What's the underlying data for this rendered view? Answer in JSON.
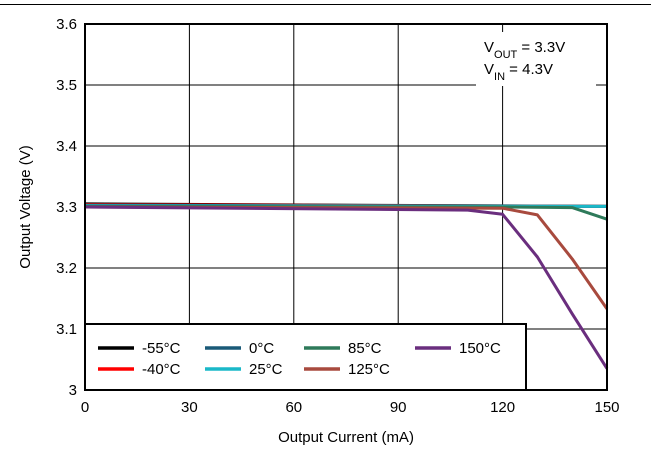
{
  "chart_data": {
    "type": "line",
    "xlabel": "Output Current (mA)",
    "ylabel": "Output Voltage (V)",
    "xlim": [
      0,
      150
    ],
    "ylim": [
      3,
      3.6
    ],
    "x_ticks": [
      "0",
      "30",
      "60",
      "90",
      "120",
      "150"
    ],
    "y_ticks": [
      "3",
      "3.1",
      "3.2",
      "3.3",
      "3.4",
      "3.5",
      "3.6"
    ],
    "grid": true,
    "legend_position": "bottom-left",
    "annotations": [
      {
        "main": "V",
        "sub": "OUT",
        "rest": " = 3.3V"
      },
      {
        "main": "V",
        "sub": "IN",
        "rest": " = 4.3V"
      }
    ],
    "series": [
      {
        "name": "-55°C",
        "color": "#000000",
        "x": [
          0,
          150
        ],
        "y": [
          3.305,
          3.301
        ]
      },
      {
        "name": "-40°C",
        "color": "#ff0000",
        "x": [
          0,
          150
        ],
        "y": [
          3.304,
          3.301
        ]
      },
      {
        "name": "0°C",
        "color": "#1a5a78",
        "x": [
          0,
          150
        ],
        "y": [
          3.303,
          3.301
        ]
      },
      {
        "name": "25°C",
        "color": "#1ab8c8",
        "x": [
          0,
          150
        ],
        "y": [
          3.302,
          3.301
        ]
      },
      {
        "name": "85°C",
        "color": "#2e7a5a",
        "x": [
          0,
          120,
          140,
          150
        ],
        "y": [
          3.301,
          3.3,
          3.299,
          3.28
        ]
      },
      {
        "name": "125°C",
        "color": "#a84a3e",
        "x": [
          0,
          120,
          130,
          140,
          150
        ],
        "y": [
          3.3,
          3.298,
          3.287,
          3.215,
          3.133
        ]
      },
      {
        "name": "150°C",
        "color": "#6a2e7e",
        "x": [
          0,
          110,
          120,
          130,
          140,
          150
        ],
        "y": [
          3.3,
          3.295,
          3.288,
          3.218,
          3.125,
          3.035
        ]
      }
    ],
    "legend_rows": [
      [
        "-55°C",
        "0°C",
        "85°C",
        "150°C"
      ],
      [
        "-40°C",
        "25°C",
        "125°C"
      ]
    ]
  }
}
